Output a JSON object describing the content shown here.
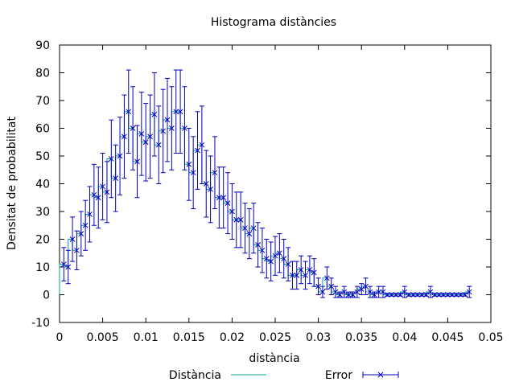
{
  "chart_data": {
    "type": "line",
    "title": "Histograma distàncies",
    "xlabel": "distància",
    "ylabel": "Densitat de probabilitat",
    "xlim": [
      0,
      0.05
    ],
    "ylim": [
      -10,
      90
    ],
    "xticks": [
      "0",
      "0.005",
      "0.01",
      "0.015",
      "0.02",
      "0.025",
      "0.03",
      "0.035",
      "0.04",
      "0.045",
      "0.05"
    ],
    "yticks": [
      "-10",
      "0",
      "10",
      "20",
      "30",
      "40",
      "50",
      "60",
      "70",
      "80",
      "90"
    ],
    "grid": false,
    "legend_position": "bottom",
    "series": [
      {
        "name": "Distància",
        "style": "histogram-steps",
        "color": "#00a0a0",
        "x": [
          0.0005,
          0.001,
          0.0015,
          0.002,
          0.0025,
          0.003,
          0.0035,
          0.004,
          0.0045,
          0.005,
          0.0055,
          0.006,
          0.0065,
          0.007,
          0.0075,
          0.008,
          0.0085,
          0.009,
          0.0095,
          0.01,
          0.0105,
          0.011,
          0.0115,
          0.012,
          0.0125,
          0.013,
          0.0135,
          0.014,
          0.0145,
          0.015,
          0.0155,
          0.016,
          0.0165,
          0.017,
          0.0175,
          0.018,
          0.0185,
          0.019,
          0.0195,
          0.02,
          0.0205,
          0.021,
          0.0215,
          0.022,
          0.0225,
          0.023,
          0.0235,
          0.024,
          0.0245,
          0.025,
          0.0255,
          0.026,
          0.0265,
          0.027,
          0.0275,
          0.028,
          0.0285,
          0.029,
          0.0295,
          0.03,
          0.0305,
          0.031,
          0.0315,
          0.032,
          0.0325,
          0.033,
          0.0335,
          0.034,
          0.0345,
          0.035,
          0.0355,
          0.036,
          0.0365,
          0.037,
          0.0375,
          0.038,
          0.0385,
          0.039,
          0.0395,
          0.04,
          0.0405,
          0.041,
          0.0415,
          0.042,
          0.0425,
          0.043,
          0.0435,
          0.044,
          0.0445,
          0.045,
          0.0455,
          0.046,
          0.0465,
          0.047,
          0.0475
        ],
        "values": [
          11,
          10,
          20,
          16,
          22,
          25,
          29,
          36,
          35,
          39,
          37,
          49,
          42,
          50,
          57,
          66,
          60,
          48,
          58,
          55,
          57,
          65,
          54,
          59,
          63,
          60,
          66,
          66,
          60,
          47,
          44,
          52,
          54,
          40,
          38,
          44,
          35,
          35,
          33,
          30,
          27,
          27,
          24,
          22,
          24,
          18,
          16,
          13,
          12,
          14,
          15,
          13,
          11,
          7,
          7,
          9,
          7,
          9,
          8,
          3,
          1,
          6,
          3,
          1,
          0,
          1,
          0,
          0,
          1,
          2,
          3,
          1,
          0,
          1,
          1,
          0,
          0,
          0,
          0,
          1,
          0,
          0,
          0,
          0,
          0,
          1,
          0,
          0,
          0,
          0,
          0,
          0,
          0,
          0,
          1
        ]
      },
      {
        "name": "Error",
        "style": "points-errorbars",
        "color": "#0000c0",
        "x": [
          0.0005,
          0.001,
          0.0015,
          0.002,
          0.0025,
          0.003,
          0.0035,
          0.004,
          0.0045,
          0.005,
          0.0055,
          0.006,
          0.0065,
          0.007,
          0.0075,
          0.008,
          0.0085,
          0.009,
          0.0095,
          0.01,
          0.0105,
          0.011,
          0.0115,
          0.012,
          0.0125,
          0.013,
          0.0135,
          0.014,
          0.0145,
          0.015,
          0.0155,
          0.016,
          0.0165,
          0.017,
          0.0175,
          0.018,
          0.0185,
          0.019,
          0.0195,
          0.02,
          0.0205,
          0.021,
          0.0215,
          0.022,
          0.0225,
          0.023,
          0.0235,
          0.024,
          0.0245,
          0.025,
          0.0255,
          0.026,
          0.0265,
          0.027,
          0.0275,
          0.028,
          0.0285,
          0.029,
          0.0295,
          0.03,
          0.0305,
          0.031,
          0.0315,
          0.032,
          0.0325,
          0.033,
          0.0335,
          0.034,
          0.0345,
          0.035,
          0.0355,
          0.036,
          0.0365,
          0.037,
          0.0375,
          0.038,
          0.0385,
          0.039,
          0.0395,
          0.04,
          0.0405,
          0.041,
          0.0415,
          0.042,
          0.0425,
          0.043,
          0.0435,
          0.044,
          0.0445,
          0.045,
          0.0455,
          0.046,
          0.0465,
          0.047,
          0.0475
        ],
        "values": [
          11,
          10,
          20,
          16,
          22,
          25,
          29,
          36,
          35,
          39,
          37,
          49,
          42,
          50,
          57,
          66,
          60,
          48,
          58,
          55,
          57,
          65,
          54,
          59,
          63,
          60,
          66,
          66,
          60,
          47,
          44,
          52,
          54,
          40,
          38,
          44,
          35,
          35,
          33,
          30,
          27,
          27,
          24,
          22,
          24,
          18,
          16,
          13,
          12,
          14,
          15,
          13,
          11,
          7,
          7,
          9,
          7,
          9,
          8,
          3,
          1,
          6,
          3,
          1,
          0,
          1,
          0,
          0,
          1,
          2,
          3,
          1,
          0,
          1,
          1,
          0,
          0,
          0,
          0,
          1,
          0,
          0,
          0,
          0,
          0,
          1,
          0,
          0,
          0,
          0,
          0,
          0,
          0,
          0,
          1
        ],
        "errors": [
          6,
          6,
          8,
          7,
          8,
          9,
          10,
          11,
          11,
          12,
          11,
          14,
          12,
          14,
          15,
          15,
          15,
          13,
          15,
          14,
          15,
          15,
          14,
          15,
          15,
          15,
          15,
          15,
          15,
          13,
          13,
          14,
          14,
          12,
          12,
          13,
          11,
          11,
          11,
          10,
          10,
          10,
          9,
          9,
          9,
          8,
          8,
          7,
          7,
          7,
          7,
          7,
          6,
          5,
          5,
          5,
          5,
          5,
          5,
          3,
          2,
          4,
          3,
          2,
          1,
          2,
          1,
          1,
          2,
          2,
          3,
          2,
          1,
          2,
          2,
          0.5,
          0.5,
          0.5,
          0.5,
          2,
          0.5,
          0.5,
          0.5,
          0.5,
          0.5,
          2,
          0.5,
          0.5,
          0.5,
          0.5,
          0.5,
          0.5,
          0.5,
          0.5,
          2
        ]
      }
    ]
  }
}
